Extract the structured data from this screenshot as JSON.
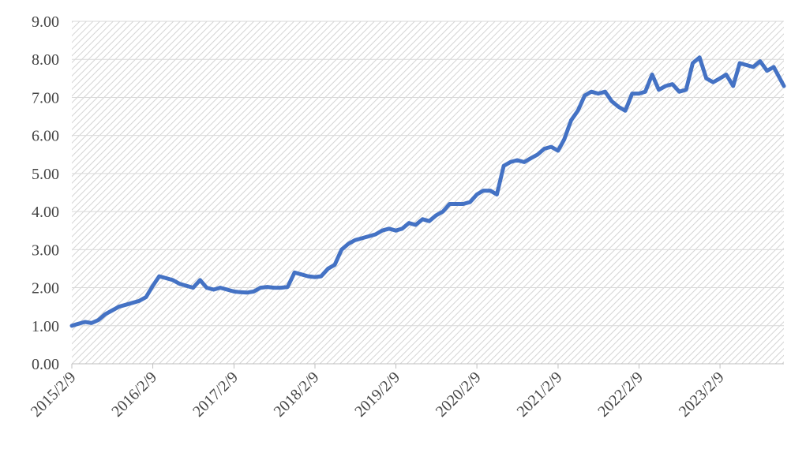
{
  "chart_data": {
    "type": "line",
    "x": [
      "2015/2/9",
      "2015/3/9",
      "2015/4/9",
      "2015/5/9",
      "2015/6/9",
      "2015/7/9",
      "2015/8/9",
      "2015/9/9",
      "2015/10/9",
      "2015/11/9",
      "2015/12/9",
      "2016/1/9",
      "2016/2/9",
      "2016/3/9",
      "2016/4/9",
      "2016/5/9",
      "2016/6/9",
      "2016/7/9",
      "2016/8/9",
      "2016/9/9",
      "2016/10/9",
      "2016/11/9",
      "2016/12/9",
      "2017/1/9",
      "2017/2/9",
      "2017/3/9",
      "2017/4/9",
      "2017/5/9",
      "2017/6/9",
      "2017/7/9",
      "2017/8/9",
      "2017/9/9",
      "2017/10/9",
      "2017/11/9",
      "2017/12/9",
      "2018/1/9",
      "2018/2/9",
      "2018/3/9",
      "2018/4/9",
      "2018/5/9",
      "2018/6/9",
      "2018/7/9",
      "2018/8/9",
      "2018/9/9",
      "2018/10/9",
      "2018/11/9",
      "2018/12/9",
      "2019/1/9",
      "2019/2/9",
      "2019/3/9",
      "2019/4/9",
      "2019/5/9",
      "2019/6/9",
      "2019/7/9",
      "2019/8/9",
      "2019/9/9",
      "2019/10/9",
      "2019/11/9",
      "2019/12/9",
      "2020/1/9",
      "2020/2/9",
      "2020/3/9",
      "2020/4/9",
      "2020/5/9",
      "2020/6/9",
      "2020/7/9",
      "2020/8/9",
      "2020/9/9",
      "2020/10/9",
      "2020/11/9",
      "2020/12/9",
      "2021/1/9",
      "2021/2/9",
      "2021/3/9",
      "2021/4/9",
      "2021/5/9",
      "2021/6/9",
      "2021/7/9",
      "2021/8/9",
      "2021/9/9",
      "2021/10/9",
      "2021/11/9",
      "2021/12/9",
      "2022/1/9",
      "2022/2/9",
      "2022/3/9",
      "2022/4/9",
      "2022/5/9",
      "2022/6/9",
      "2022/7/9",
      "2022/8/9",
      "2022/9/9",
      "2022/10/9",
      "2022/11/9",
      "2022/12/9",
      "2023/1/9",
      "2023/2/9",
      "2023/3/9",
      "2023/4/9",
      "2023/5/9",
      "2023/6/9",
      "2023/7/9",
      "2023/8/9",
      "2023/9/9",
      "2023/10/9",
      "2023/11/24"
    ],
    "series": [
      {
        "color": "#4472c4",
        "values": [
          1.0,
          1.05,
          1.1,
          1.07,
          1.15,
          1.3,
          1.4,
          1.5,
          1.55,
          1.6,
          1.65,
          1.75,
          2.05,
          2.3,
          2.25,
          2.2,
          2.1,
          2.05,
          2.0,
          2.2,
          2.0,
          1.95,
          2.0,
          1.95,
          1.9,
          1.88,
          1.87,
          1.9,
          2.0,
          2.02,
          2.0,
          2.0,
          2.02,
          2.4,
          2.35,
          2.3,
          2.28,
          2.3,
          2.5,
          2.6,
          3.0,
          3.15,
          3.25,
          3.3,
          3.35,
          3.4,
          3.5,
          3.55,
          3.5,
          3.55,
          3.7,
          3.65,
          3.8,
          3.75,
          3.9,
          4.0,
          4.2,
          4.2,
          4.2,
          4.25,
          4.45,
          4.55,
          4.55,
          4.45,
          5.2,
          5.3,
          5.35,
          5.3,
          5.4,
          5.5,
          5.65,
          5.7,
          5.6,
          5.9,
          6.4,
          6.65,
          7.05,
          7.15,
          7.1,
          7.15,
          6.9,
          6.75,
          6.65,
          7.1,
          7.1,
          7.15,
          7.6,
          7.2,
          7.3,
          7.35,
          7.15,
          7.2,
          7.9,
          8.05,
          7.5,
          7.4,
          7.5,
          7.6,
          7.3,
          7.9,
          7.85,
          7.8,
          7.95,
          7.7,
          7.8,
          7.3
        ]
      }
    ],
    "xlim": [
      "2015/2/9",
      "2023/11/24"
    ],
    "xticks": [
      "2015/2/9",
      "2016/2/9",
      "2017/2/9",
      "2018/2/9",
      "2019/2/9",
      "2020/2/9",
      "2021/2/9",
      "2022/2/9",
      "2023/2/9"
    ],
    "ylim": [
      0,
      9
    ],
    "yticks": [
      {
        "value": 0,
        "label": "0.00"
      },
      {
        "value": 1,
        "label": "1.00"
      },
      {
        "value": 2,
        "label": "2.00"
      },
      {
        "value": 3,
        "label": "3.00"
      },
      {
        "value": 4,
        "label": "4.00"
      },
      {
        "value": 5,
        "label": "5.00"
      },
      {
        "value": 6,
        "label": "6.00"
      },
      {
        "value": 7,
        "label": "7.00"
      },
      {
        "value": 8,
        "label": "8.00"
      },
      {
        "value": 9,
        "label": "9.00"
      }
    ],
    "grid": true
  }
}
